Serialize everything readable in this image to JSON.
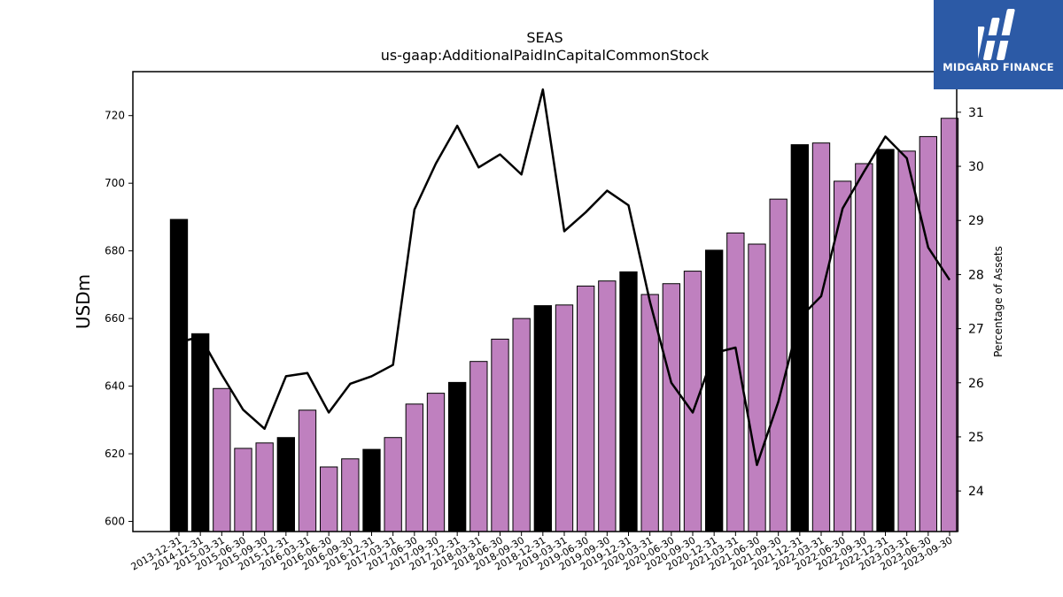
{
  "logo": {
    "text": "MIDGARD FINANCE",
    "background": "#2c5aa6"
  },
  "chart_data": {
    "type": "bar",
    "title": "SEAS",
    "subtitle": "us-gaap:AdditionalPaidInCapitalCommonStock",
    "ylabel": "USDm",
    "y2label": "Percentage of Assets",
    "ylim": [
      597,
      733
    ],
    "y2lim": [
      23.25,
      31.75
    ],
    "yticks": [
      600,
      620,
      640,
      660,
      680,
      700,
      720
    ],
    "y2ticks": [
      24,
      25,
      26,
      27,
      28,
      29,
      30,
      31
    ],
    "colors": {
      "annual": "#000000",
      "quarter": "#bf80bf",
      "line": "#000000"
    },
    "categories": [
      "2013-12-31",
      "2014-12-31",
      "2015-03-31",
      "2015-06-30",
      "2015-09-30",
      "2015-12-31",
      "2016-03-31",
      "2016-06-30",
      "2016-09-30",
      "2016-12-31",
      "2017-03-31",
      "2017-06-30",
      "2017-09-30",
      "2017-12-31",
      "2018-03-31",
      "2018-06-30",
      "2018-09-30",
      "2018-12-31",
      "2019-03-31",
      "2019-06-30",
      "2019-09-30",
      "2019-12-31",
      "2020-03-31",
      "2020-06-30",
      "2020-09-30",
      "2020-12-31",
      "2021-03-31",
      "2021-06-30",
      "2021-09-30",
      "2021-12-31",
      "2022-03-31",
      "2022-06-30",
      "2022-09-30",
      "2022-12-31",
      "2023-03-31",
      "2023-06-30",
      "2023-09-30"
    ],
    "annual": [
      true,
      true,
      false,
      false,
      false,
      true,
      false,
      false,
      false,
      true,
      false,
      false,
      false,
      true,
      false,
      false,
      false,
      true,
      false,
      false,
      false,
      true,
      false,
      false,
      false,
      true,
      false,
      false,
      false,
      true,
      false,
      false,
      false,
      true,
      false,
      false,
      false
    ],
    "series": [
      {
        "type": "bar",
        "values": [
          689.3,
          655.5,
          639.3,
          621.6,
          623.2,
          624.8,
          632.9,
          616.1,
          618.5,
          621.3,
          624.8,
          634.7,
          637.9,
          641.1,
          647.3,
          653.9,
          660.0,
          663.8,
          664.0,
          669.6,
          671.1,
          673.8,
          667.1,
          670.3,
          674.0,
          680.2,
          685.3,
          682.0,
          695.3,
          711.4,
          711.9,
          700.6,
          705.8,
          710.0,
          709.5,
          713.8,
          719.2
        ]
      },
      {
        "type": "line",
        "axis": "right",
        "values": [
          26.75,
          26.85,
          26.15,
          25.5,
          25.15,
          26.12,
          26.18,
          25.45,
          25.98,
          26.12,
          26.33,
          29.2,
          30.05,
          30.75,
          29.98,
          30.22,
          29.85,
          31.42,
          28.8,
          29.15,
          29.55,
          29.28,
          27.5,
          26.0,
          25.45,
          26.55,
          26.65,
          24.48,
          25.65,
          27.2,
          27.6,
          29.22,
          29.9,
          30.55,
          30.15,
          28.5,
          27.9
        ]
      }
    ]
  }
}
